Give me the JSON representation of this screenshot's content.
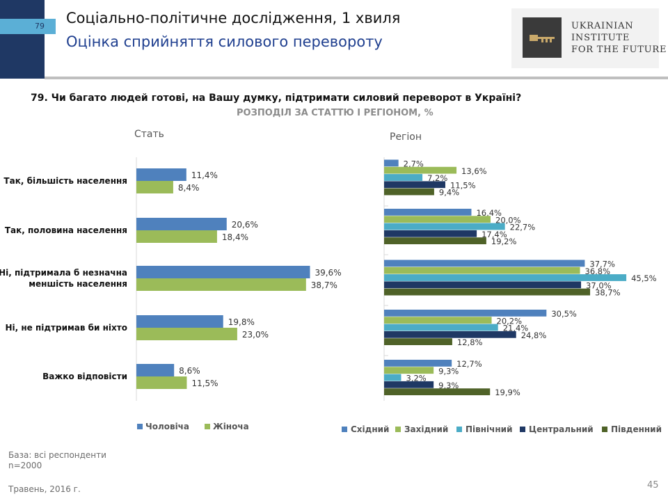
{
  "header": {
    "slide_number": "79",
    "title": "Соціально-політичне дослідження, 1 хвиля",
    "subtitle": "Оцінка сприйняття силового перевороту",
    "logo_lines": [
      "Ukrainian",
      "Institute",
      "for the Future"
    ]
  },
  "question": "79. Чи багато людей готові, на Вашу думку, підтримати силовий переворот в Україні?",
  "distribution_label": "РОЗПОДІЛ ЗА СТАТТЮ І РЕГІОНОМ, %",
  "footer": {
    "base": "База: всі респонденти",
    "n": "n=2000",
    "date": "Травень, 2016 г.",
    "page": "45"
  },
  "chart_data": [
    {
      "type": "bar",
      "orientation": "horizontal",
      "title": "Стать",
      "categories": [
        "Так, більшість населення",
        "Так, половина населення",
        "Ні, підтримала б незначна меншість населення",
        "Ні, не підтримав би ніхто",
        "Важко відповісти"
      ],
      "category_lines": [
        [
          "Так, більшість населення"
        ],
        [
          "Так, половина населення"
        ],
        [
          "Ні, підтримала б незначна",
          "меншість населення"
        ],
        [
          "Ні, не підтримав би ніхто"
        ],
        [
          "Важко відповісти"
        ]
      ],
      "series": [
        {
          "name": "Чоловіча",
          "color": "#4f81bd",
          "values": [
            11.4,
            20.6,
            39.6,
            19.8,
            8.6
          ],
          "labels": [
            "11,4%",
            "20,6%",
            "39,6%",
            "19,8%",
            "8,6%"
          ]
        },
        {
          "name": "Жіноча",
          "color": "#9bbb59",
          "values": [
            8.4,
            18.4,
            38.7,
            23.0,
            11.5
          ],
          "labels": [
            "8,4%",
            "18,4%",
            "38,7%",
            "23,0%",
            "11,5%"
          ]
        }
      ],
      "xlim": [
        0,
        50
      ],
      "legend": "bottom"
    },
    {
      "type": "bar",
      "orientation": "horizontal",
      "title": "Регіон",
      "categories": [
        "Так, більшість населення",
        "Так, половина населення",
        "Ні, підтримала б незначна меншість населення",
        "Ні, не підтримав би ніхто",
        "Важко відповісти"
      ],
      "series": [
        {
          "name": "Східний",
          "color": "#4f81bd",
          "values": [
            2.7,
            16.4,
            37.7,
            30.5,
            12.7
          ],
          "labels": [
            "2,7%",
            "16,4%",
            "37,7%",
            "30,5%",
            "12,7%"
          ]
        },
        {
          "name": "Західний",
          "color": "#9bbb59",
          "values": [
            13.6,
            20.0,
            36.8,
            20.2,
            9.3
          ],
          "labels": [
            "13,6%",
            "20,0%",
            "36,8%",
            "20,2%",
            "9,3%"
          ]
        },
        {
          "name": "Північний",
          "color": "#4bacc6",
          "values": [
            7.2,
            22.7,
            45.5,
            21.4,
            3.2
          ],
          "labels": [
            "7,2%",
            "22,7%",
            "45,5%",
            "21,4%",
            "3,2%"
          ]
        },
        {
          "name": "Центральний",
          "color": "#1f3864",
          "values": [
            11.5,
            17.4,
            37.0,
            24.8,
            9.3
          ],
          "labels": [
            "11,5%",
            "17,4%",
            "37,0%",
            "24,8%",
            "9,3%"
          ]
        },
        {
          "name": "Південний",
          "color": "#4f6228",
          "values": [
            9.4,
            19.2,
            38.7,
            12.8,
            19.9
          ],
          "labels": [
            "9,4%",
            "19,2%",
            "38,7%",
            "12,8%",
            "19,9%"
          ]
        }
      ],
      "xlim": [
        0,
        50
      ],
      "legend": "bottom"
    }
  ]
}
